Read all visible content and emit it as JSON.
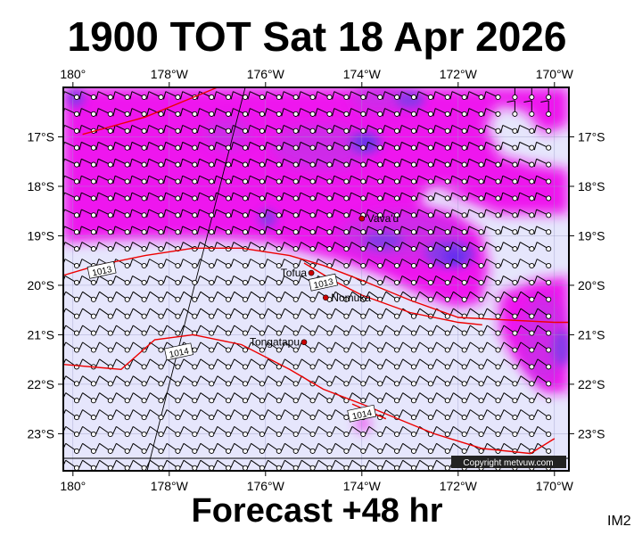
{
  "title": "1900 TOT Sat 18 Apr 2026",
  "footer": "Forecast +48 hr",
  "code": "IM2",
  "copyright": "Copyright metvuw.com",
  "map": {
    "lon_range": [
      -180.2,
      -169.7
    ],
    "lat_range": [
      -23.75,
      -16.0
    ],
    "lon_ticks": [
      {
        "lon": -180,
        "label": "180°"
      },
      {
        "lon": -178,
        "label": "178°W"
      },
      {
        "lon": -176,
        "label": "176°W"
      },
      {
        "lon": -174,
        "label": "174°W"
      },
      {
        "lon": -172,
        "label": "172°W"
      },
      {
        "lon": -170,
        "label": "170°W"
      }
    ],
    "lat_ticks": [
      {
        "lat": -17,
        "label": "17°S"
      },
      {
        "lat": -18,
        "label": "18°S"
      },
      {
        "lat": -19,
        "label": "19°S"
      },
      {
        "lat": -20,
        "label": "20°S"
      },
      {
        "lat": -21,
        "label": "21°S"
      },
      {
        "lat": -22,
        "label": "22°S"
      },
      {
        "lat": -23,
        "label": "23°S"
      }
    ],
    "places": [
      {
        "name": "Vava'u",
        "lon": -174.0,
        "lat": -18.65
      },
      {
        "name": "Tofua",
        "lon": -175.05,
        "lat": -19.75
      },
      {
        "name": "Nomuka",
        "lon": -174.75,
        "lat": -20.25
      },
      {
        "name": "Tongatapu",
        "lon": -175.2,
        "lat": -21.15
      }
    ],
    "isobars": [
      {
        "label": "1013",
        "points": [
          [
            -180.2,
            -19.8
          ],
          [
            -179.5,
            -19.6
          ],
          [
            -178.5,
            -19.4
          ],
          [
            -177.5,
            -19.25
          ],
          [
            -176.5,
            -19.25
          ],
          [
            -175.5,
            -19.4
          ],
          [
            -174.8,
            -19.6
          ],
          [
            -174.0,
            -19.9
          ],
          [
            -173.0,
            -20.3
          ],
          [
            -172.0,
            -20.65
          ],
          [
            -171.0,
            -20.7
          ],
          [
            -170.0,
            -20.75
          ],
          [
            -169.7,
            -20.75
          ]
        ],
        "label_at": [
          -179.4,
          -19.7
        ]
      },
      {
        "label": "1013",
        "points": [
          [
            -175.2,
            -19.55
          ],
          [
            -174.6,
            -19.9
          ],
          [
            -174.0,
            -20.2
          ],
          [
            -173.0,
            -20.55
          ],
          [
            -172.0,
            -20.75
          ],
          [
            -171.5,
            -20.8
          ]
        ],
        "label_at": [
          -174.8,
          -19.95
        ]
      },
      {
        "label": "1014",
        "points": [
          [
            -180.2,
            -21.6
          ],
          [
            -179.0,
            -21.7
          ],
          [
            -178.3,
            -21.1
          ],
          [
            -177.5,
            -21.0
          ],
          [
            -176.5,
            -21.2
          ],
          [
            -175.5,
            -21.7
          ],
          [
            -174.8,
            -22.1
          ],
          [
            -174.0,
            -22.4
          ],
          [
            -172.5,
            -23.0
          ],
          [
            -171.5,
            -23.3
          ],
          [
            -170.5,
            -23.4
          ],
          [
            -170.0,
            -23.1
          ]
        ],
        "label_at": [
          -177.8,
          -21.35
        ]
      },
      {
        "label": "1014",
        "points": [
          [
            -174.2,
            -22.4
          ],
          [
            -173.5,
            -22.7
          ]
        ],
        "label_at": [
          -174.0,
          -22.6
        ]
      },
      {
        "label": "",
        "points": [
          [
            -179.8,
            -16.95
          ],
          [
            -178.5,
            -16.6
          ],
          [
            -177.5,
            -16.2
          ],
          [
            -177.0,
            -16.0
          ]
        ],
        "label_at": null
      }
    ]
  }
}
